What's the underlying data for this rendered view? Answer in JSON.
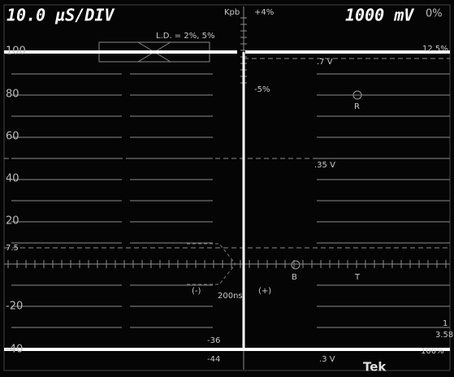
{
  "header": {
    "timebase": "10.0 µS/DIV",
    "scale": "1000 mV"
  },
  "graticule": {
    "ire_labels": [
      "100",
      "80",
      "60",
      "40",
      "20",
      "7.5",
      "-20",
      "-40"
    ],
    "kpb": {
      "label": "Kpb",
      "plus": "+4%",
      "minus": "-5%",
      "zero": "0%"
    },
    "ld": "L.D. = 2%, 5%",
    "percent_right": "12.5%",
    "volts": [
      ".7 V",
      ".35 V",
      ".3 V"
    ],
    "vector_labels": [
      "R",
      "B",
      "T"
    ],
    "timing": [
      "(-)",
      "200ns",
      "(+)"
    ],
    "chroma": [
      "1",
      "3.58"
    ],
    "sync": [
      "-36",
      "-44"
    ],
    "bottom_percent": "100%"
  },
  "brand": "Tek"
}
